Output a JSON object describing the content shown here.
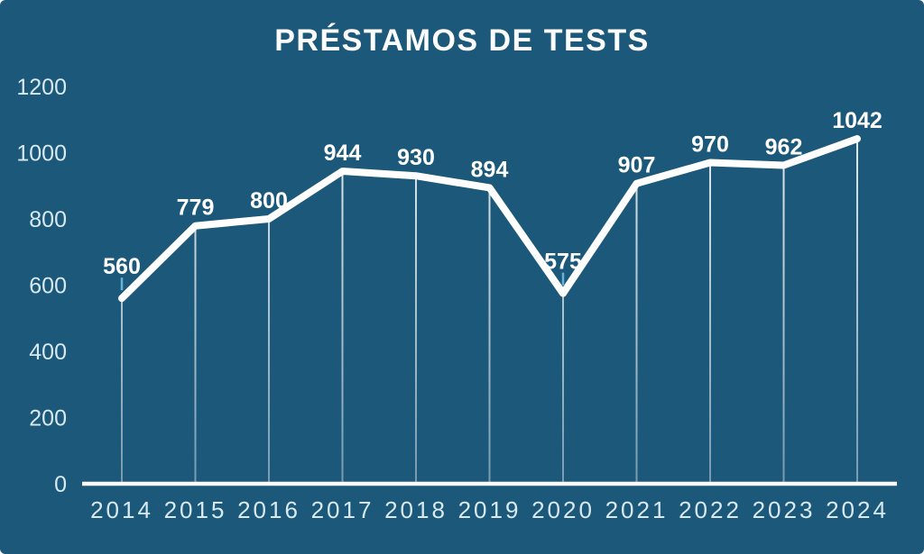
{
  "title": "PRÉSTAMOS DE TESTS",
  "colors": {
    "background": "#1b5879",
    "line": "#ffffff",
    "axis_line": "#fdfdfd",
    "tick_label": "#d9e9f0",
    "data_label": "#ffffff",
    "leader_tick": "#6ab1d6",
    "drop_line": "#ffffff"
  },
  "chart_data": {
    "type": "line",
    "title": "PRÉSTAMOS DE TESTS",
    "categories": [
      "2014",
      "2015",
      "2016",
      "2017",
      "2018",
      "2019",
      "2020",
      "2021",
      "2022",
      "2023",
      "2024"
    ],
    "values": [
      560,
      779,
      800,
      944,
      930,
      894,
      575,
      907,
      970,
      962,
      1042
    ],
    "xlabel": "",
    "ylabel": "",
    "ylim": [
      0,
      1200
    ],
    "y_ticks": [
      0,
      200,
      400,
      600,
      800,
      1000,
      1200
    ],
    "grid": "off",
    "legend": "none",
    "data_labels": "on",
    "leader_tick_years": [
      "2014",
      "2020"
    ]
  }
}
